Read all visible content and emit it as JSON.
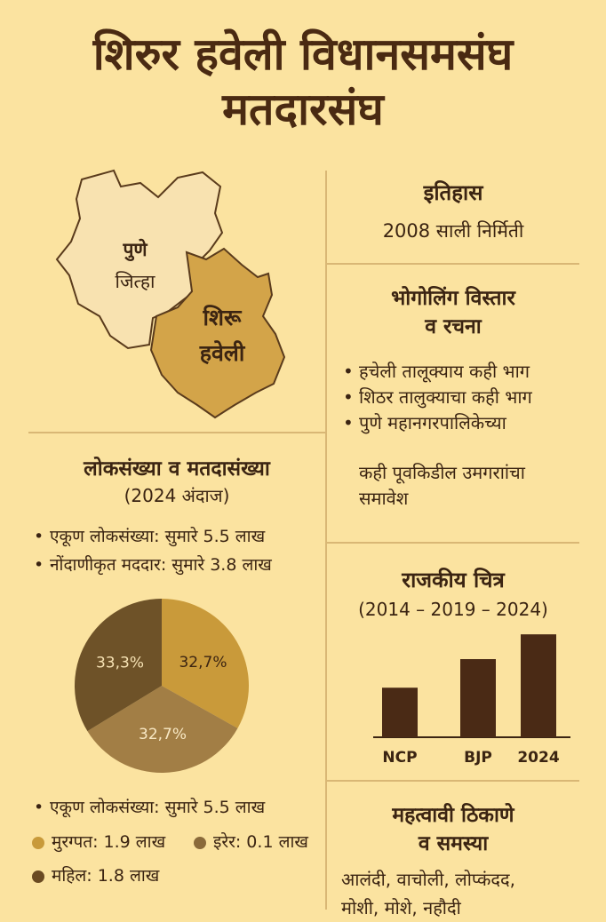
{
  "title_line1": "शिरुर हवेली विधानसमसंघ",
  "title_line2": "मतदारसंघ",
  "map": {
    "pune_label_1": "पुणे",
    "pune_label_2": "जित्हा",
    "shirur_label_1": "शिरू",
    "shirur_label_2": "हवेली"
  },
  "history": {
    "title": "इतिहास",
    "text": "2008 साली निर्मिती"
  },
  "geography": {
    "title_1": "भोगोलिंग विस्तार",
    "title_2": "व रचना",
    "items": [
      "हचेली तालूक्याय कही भाग",
      "शिठर तालुक्याचा कही भाग",
      "पुणे महानगरपालिकेच्या",
      "कही पूवकिडील उमगराांचा",
      "समावेश"
    ]
  },
  "population": {
    "title": "लोकसंख्या व मतदासंख्या",
    "subtitle": "(2024 अंदाज)",
    "items": [
      "एकूण लोकसंख्या: सुमारे 5.5 लाख",
      "नोंदाणीकृत मददार: सुमारे 3.8 लाख"
    ],
    "bottom_item": "एकूण लोकसंख्या: सुमारे 5.5 लाख",
    "legend": [
      {
        "label": "मुरग्पत: 1.9 लाख",
        "color": "#c89a3a"
      },
      {
        "label": "इरेर: 0.1 लाख",
        "color": "#8a6a3a"
      },
      {
        "label": "महिल: 1.8 लाख",
        "color": "#6a4a22"
      }
    ]
  },
  "politics": {
    "title": "राजकीय चित्र",
    "subtitle": "(2014 – 2019 – 2024)"
  },
  "places": {
    "title_1": "महत्वावी ठिकाणे",
    "title_2": "व समस्या",
    "line_1": "आलंदी, वाचोली, लोप्कंदद,",
    "line_2": "मोशी, मोशे, नहौदी"
  },
  "colors": {
    "background": "#fbe3a0",
    "text": "#3b2412",
    "pune_fill": "#f8e2b0",
    "shirur_fill": "#d3a449",
    "bar": "#4a2a15"
  },
  "chart_data": [
    {
      "type": "pie",
      "labels": [
        "32,7%",
        "32,7%",
        "33,3%"
      ],
      "values": [
        32.7,
        32.7,
        33.3
      ],
      "colors": [
        "#c99a3a",
        "#a27e45",
        "#6e5228"
      ]
    },
    {
      "type": "bar",
      "categories": [
        "NCP",
        "BJP",
        "2024"
      ],
      "values": [
        52,
        82,
        108
      ],
      "ylim": [
        0,
        110
      ],
      "grid": false
    }
  ]
}
